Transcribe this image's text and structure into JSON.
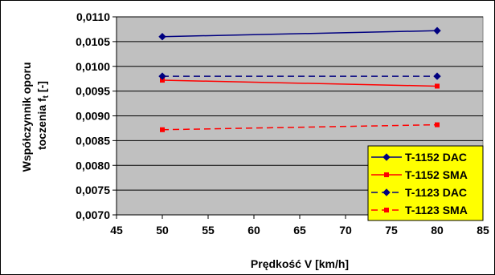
{
  "chart_data": {
    "type": "line",
    "title": "",
    "xlabel": "Prędkość V [km/h]",
    "ylabel_line1": "Współczynnik oporu",
    "ylabel_line2_prefix": "toczenia f",
    "ylabel_line2_sub": "t",
    "ylabel_line2_suffix": " [-]",
    "xlim": [
      45,
      85
    ],
    "ylim": [
      0.007,
      0.011
    ],
    "x_ticks": [
      45,
      50,
      55,
      60,
      65,
      70,
      75,
      80,
      85
    ],
    "y_ticks": [
      0.007,
      0.0075,
      0.008,
      0.0085,
      0.009,
      0.0095,
      0.01,
      0.0105,
      0.011
    ],
    "x_tick_labels": [
      "45",
      "50",
      "55",
      "60",
      "65",
      "70",
      "75",
      "80",
      "85"
    ],
    "y_tick_labels": [
      "0,0070",
      "0,0075",
      "0,0080",
      "0,0085",
      "0,0090",
      "0,0095",
      "0,0100",
      "0,0105",
      "0,0110"
    ],
    "grid": "horizontal",
    "plot_background": "#c0c0c0",
    "legend_placement": "bottom-right",
    "series": [
      {
        "name": "T-1152 DAC",
        "x": [
          50,
          80
        ],
        "values": [
          0.0106,
          0.01072
        ],
        "color": "#000080",
        "dash": "solid",
        "marker": "diamond"
      },
      {
        "name": "T-1152 SMA",
        "x": [
          50,
          80
        ],
        "values": [
          0.00972,
          0.0096
        ],
        "color": "#ff0000",
        "dash": "solid",
        "marker": "square"
      },
      {
        "name": "T-1123 DAC",
        "x": [
          50,
          80
        ],
        "values": [
          0.0098,
          0.0098
        ],
        "color": "#000080",
        "dash": "dashed",
        "marker": "diamond"
      },
      {
        "name": "T-1123 SMA",
        "x": [
          50,
          80
        ],
        "values": [
          0.00872,
          0.00882
        ],
        "color": "#ff0000",
        "dash": "dashed",
        "marker": "square"
      }
    ]
  }
}
